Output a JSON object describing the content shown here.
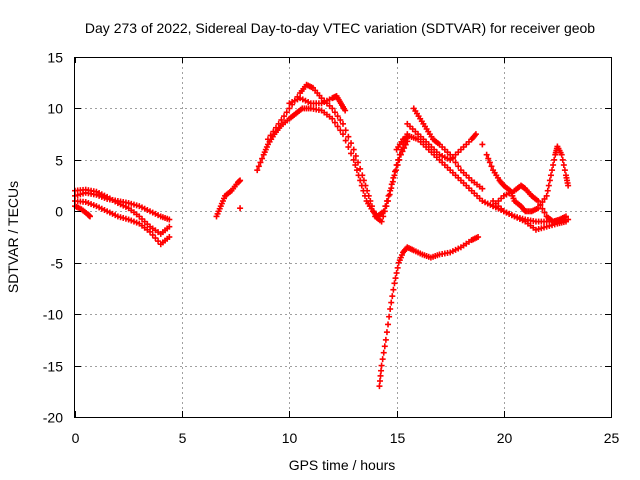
{
  "chart_data": {
    "type": "scatter",
    "title": "Day 273 of 2022, Sidereal Day-to-day VTEC variation (SDTVAR) for receiver geob",
    "xlabel": "GPS time / hours",
    "ylabel": "SDTVAR / TECUs",
    "xlim": [
      0,
      25
    ],
    "ylim": [
      -20,
      15
    ],
    "x_ticks": [
      "0",
      "5",
      "10",
      "15",
      "20",
      "25"
    ],
    "y_ticks": [
      "15",
      "10",
      "5",
      "0",
      "-5",
      "-10",
      "-15",
      "-20"
    ],
    "grid": true,
    "marker": "+",
    "color": "#ff0000",
    "series": [
      {
        "points": [
          [
            0.0,
            1.5
          ],
          [
            0.5,
            1.8
          ],
          [
            1.0,
            1.6
          ],
          [
            1.5,
            1.2
          ],
          [
            2.0,
            1.0
          ],
          [
            2.5,
            0.8
          ],
          [
            3.0,
            0.5
          ],
          [
            3.5,
            0.0
          ],
          [
            4.0,
            -0.5
          ],
          [
            4.4,
            -0.8
          ]
        ]
      },
      {
        "points": [
          [
            0.0,
            1.0
          ],
          [
            0.5,
            0.9
          ],
          [
            1.0,
            0.5
          ],
          [
            1.5,
            0.0
          ],
          [
            2.0,
            -0.5
          ],
          [
            2.5,
            -0.8
          ],
          [
            3.0,
            -1.2
          ],
          [
            3.5,
            -2.0
          ],
          [
            4.0,
            -3.2
          ],
          [
            4.4,
            -2.5
          ]
        ]
      },
      {
        "points": [
          [
            0.0,
            2.0
          ],
          [
            0.5,
            2.1
          ],
          [
            1.0,
            1.9
          ],
          [
            1.5,
            1.4
          ],
          [
            2.0,
            0.8
          ],
          [
            2.5,
            0.3
          ],
          [
            3.0,
            -0.5
          ],
          [
            3.5,
            -1.5
          ],
          [
            4.0,
            -2.2
          ],
          [
            4.4,
            -1.5
          ]
        ]
      },
      {
        "points": [
          [
            0.0,
            0.5
          ],
          [
            0.3,
            0.2
          ],
          [
            0.6,
            -0.3
          ],
          [
            0.7,
            -0.5
          ]
        ]
      },
      {
        "points": [
          [
            6.6,
            -0.5
          ],
          [
            6.8,
            0.5
          ],
          [
            7.0,
            1.5
          ],
          [
            7.3,
            2.0
          ],
          [
            7.6,
            2.8
          ],
          [
            7.7,
            3.0
          ]
        ]
      },
      {
        "points": [
          [
            7.7,
            0.3
          ]
        ]
      },
      {
        "points": [
          [
            8.5,
            4.0
          ],
          [
            8.8,
            5.5
          ],
          [
            9.0,
            6.5
          ],
          [
            9.3,
            7.5
          ],
          [
            9.6,
            8.3
          ],
          [
            10.0,
            9.0
          ],
          [
            10.3,
            9.5
          ],
          [
            10.6,
            10.0
          ],
          [
            11.0,
            10.0
          ],
          [
            11.5,
            9.8
          ],
          [
            12.0,
            9.0
          ],
          [
            12.5,
            7.5
          ],
          [
            13.0,
            5.0
          ],
          [
            13.3,
            3.0
          ],
          [
            13.6,
            1.0
          ],
          [
            13.9,
            0.0
          ],
          [
            14.1,
            -0.5
          ],
          [
            14.4,
            0.0
          ],
          [
            14.7,
            2.0
          ],
          [
            15.0,
            4.5
          ],
          [
            15.3,
            6.5
          ],
          [
            15.5,
            7.5
          ]
        ]
      },
      {
        "points": [
          [
            9.0,
            7.0
          ],
          [
            9.5,
            8.5
          ],
          [
            10.0,
            10.0
          ],
          [
            10.5,
            11.5
          ],
          [
            10.8,
            12.3
          ],
          [
            11.1,
            12.0
          ],
          [
            11.5,
            11.0
          ],
          [
            12.0,
            10.0
          ],
          [
            12.5,
            8.5
          ],
          [
            13.0,
            6.0
          ],
          [
            13.4,
            3.5
          ],
          [
            13.7,
            1.5
          ],
          [
            14.0,
            -0.5
          ],
          [
            14.3,
            -1.0
          ],
          [
            14.6,
            1.0
          ],
          [
            14.9,
            3.5
          ],
          [
            15.2,
            5.5
          ],
          [
            15.5,
            6.8
          ]
        ]
      },
      {
        "points": [
          [
            10.0,
            10.5
          ],
          [
            10.5,
            11.0
          ],
          [
            11.0,
            10.5
          ],
          [
            11.5,
            10.5
          ],
          [
            12.0,
            11.0
          ],
          [
            12.2,
            11.2
          ],
          [
            12.4,
            10.5
          ],
          [
            12.6,
            9.8
          ]
        ]
      },
      {
        "points": [
          [
            15.0,
            6.0
          ],
          [
            15.3,
            7.0
          ],
          [
            15.6,
            7.3
          ],
          [
            16.0,
            7.0
          ],
          [
            16.5,
            6.0
          ],
          [
            17.0,
            5.0
          ],
          [
            17.5,
            4.0
          ],
          [
            18.0,
            3.0
          ],
          [
            18.5,
            2.0
          ],
          [
            19.0,
            1.0
          ],
          [
            19.5,
            0.5
          ],
          [
            20.0,
            0.0
          ],
          [
            20.5,
            -0.5
          ],
          [
            21.0,
            -0.8
          ],
          [
            21.5,
            -1.0
          ],
          [
            22.0,
            -1.0
          ],
          [
            22.5,
            -1.0
          ],
          [
            23.0,
            -0.8
          ]
        ]
      },
      {
        "points": [
          [
            15.8,
            10.0
          ],
          [
            16.1,
            9.0
          ],
          [
            16.4,
            8.0
          ],
          [
            16.7,
            7.0
          ],
          [
            17.0,
            6.5
          ],
          [
            17.5,
            5.5
          ],
          [
            18.0,
            4.0
          ],
          [
            18.5,
            3.0
          ],
          [
            19.0,
            2.2
          ]
        ]
      },
      {
        "points": [
          [
            15.5,
            8.5
          ],
          [
            16.0,
            7.5
          ],
          [
            16.5,
            6.5
          ],
          [
            17.0,
            5.5
          ],
          [
            17.5,
            5.0
          ],
          [
            18.0,
            6.0
          ],
          [
            18.5,
            7.0
          ],
          [
            18.7,
            7.5
          ]
        ]
      },
      {
        "points": [
          [
            19.0,
            6.5
          ]
        ]
      },
      {
        "points": [
          [
            19.2,
            5.5
          ],
          [
            19.5,
            4.0
          ],
          [
            19.8,
            3.0
          ],
          [
            20.0,
            2.5
          ],
          [
            20.3,
            2.0
          ],
          [
            20.5,
            1.0
          ],
          [
            20.8,
            0.5
          ],
          [
            21.0,
            0.0
          ],
          [
            21.3,
            0.0
          ],
          [
            21.6,
            0.3
          ],
          [
            22.0,
            1.5
          ],
          [
            22.2,
            3.5
          ],
          [
            22.4,
            5.5
          ],
          [
            22.5,
            6.3
          ],
          [
            22.7,
            5.5
          ],
          [
            22.9,
            3.5
          ],
          [
            23.0,
            2.5
          ]
        ]
      },
      {
        "points": [
          [
            19.5,
            0.5
          ],
          [
            20.0,
            1.5
          ],
          [
            20.5,
            2.0
          ],
          [
            20.8,
            2.5
          ],
          [
            21.0,
            2.2
          ],
          [
            21.3,
            1.5
          ],
          [
            21.6,
            1.0
          ],
          [
            22.0,
            -0.5
          ],
          [
            22.3,
            -1.0
          ],
          [
            22.6,
            -0.8
          ],
          [
            22.9,
            -0.5
          ]
        ]
      },
      {
        "points": [
          [
            19.5,
            1.0
          ],
          [
            20.0,
            0.0
          ],
          [
            20.5,
            -0.5
          ],
          [
            21.0,
            -1.0
          ],
          [
            21.5,
            -1.8
          ],
          [
            22.0,
            -1.5
          ],
          [
            22.5,
            -1.2
          ],
          [
            22.9,
            -1.0
          ]
        ]
      },
      {
        "points": [
          [
            14.2,
            -17.0
          ],
          [
            14.3,
            -15.0
          ],
          [
            14.5,
            -12.5
          ],
          [
            14.7,
            -9.5
          ],
          [
            14.9,
            -7.0
          ],
          [
            15.1,
            -5.0
          ],
          [
            15.3,
            -4.0
          ],
          [
            15.5,
            -3.5
          ],
          [
            15.8,
            -3.8
          ],
          [
            16.2,
            -4.2
          ],
          [
            16.6,
            -4.5
          ],
          [
            17.0,
            -4.2
          ],
          [
            17.5,
            -4.0
          ],
          [
            18.0,
            -3.5
          ],
          [
            18.5,
            -2.8
          ],
          [
            18.8,
            -2.5
          ]
        ]
      }
    ]
  }
}
